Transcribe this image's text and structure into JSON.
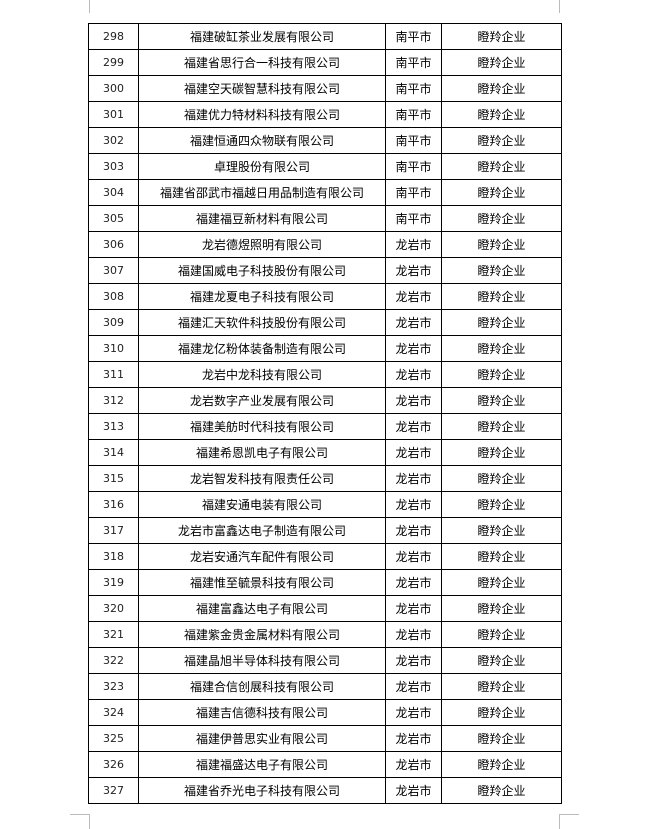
{
  "rows": [
    {
      "no": "298",
      "name": "福建破缸茶业发展有限公司",
      "city": "南平市",
      "type": "瞪羚企业"
    },
    {
      "no": "299",
      "name": "福建省思行合一科技有限公司",
      "city": "南平市",
      "type": "瞪羚企业"
    },
    {
      "no": "300",
      "name": "福建空天碳智慧科技有限公司",
      "city": "南平市",
      "type": "瞪羚企业"
    },
    {
      "no": "301",
      "name": "福建优力特材料科技有限公司",
      "city": "南平市",
      "type": "瞪羚企业"
    },
    {
      "no": "302",
      "name": "福建恒通四众物联有限公司",
      "city": "南平市",
      "type": "瞪羚企业"
    },
    {
      "no": "303",
      "name": "卓理股份有限公司",
      "city": "南平市",
      "type": "瞪羚企业"
    },
    {
      "no": "304",
      "name": "福建省邵武市福越日用品制造有限公司",
      "city": "南平市",
      "type": "瞪羚企业"
    },
    {
      "no": "305",
      "name": "福建福豆新材料有限公司",
      "city": "南平市",
      "type": "瞪羚企业"
    },
    {
      "no": "306",
      "name": "龙岩德煜照明有限公司",
      "city": "龙岩市",
      "type": "瞪羚企业"
    },
    {
      "no": "307",
      "name": "福建国威电子科技股份有限公司",
      "city": "龙岩市",
      "type": "瞪羚企业"
    },
    {
      "no": "308",
      "name": "福建龙夏电子科技有限公司",
      "city": "龙岩市",
      "type": "瞪羚企业"
    },
    {
      "no": "309",
      "name": "福建汇天软件科技股份有限公司",
      "city": "龙岩市",
      "type": "瞪羚企业"
    },
    {
      "no": "310",
      "name": "福建龙亿粉体装备制造有限公司",
      "city": "龙岩市",
      "type": "瞪羚企业"
    },
    {
      "no": "311",
      "name": "龙岩中龙科技有限公司",
      "city": "龙岩市",
      "type": "瞪羚企业"
    },
    {
      "no": "312",
      "name": "龙岩数字产业发展有限公司",
      "city": "龙岩市",
      "type": "瞪羚企业"
    },
    {
      "no": "313",
      "name": "福建美舫时代科技有限公司",
      "city": "龙岩市",
      "type": "瞪羚企业"
    },
    {
      "no": "314",
      "name": "福建希恩凯电子有限公司",
      "city": "龙岩市",
      "type": "瞪羚企业"
    },
    {
      "no": "315",
      "name": "龙岩智发科技有限责任公司",
      "city": "龙岩市",
      "type": "瞪羚企业"
    },
    {
      "no": "316",
      "name": "福建安通电装有限公司",
      "city": "龙岩市",
      "type": "瞪羚企业"
    },
    {
      "no": "317",
      "name": "龙岩市富鑫达电子制造有限公司",
      "city": "龙岩市",
      "type": "瞪羚企业"
    },
    {
      "no": "318",
      "name": "龙岩安通汽车配件有限公司",
      "city": "龙岩市",
      "type": "瞪羚企业"
    },
    {
      "no": "319",
      "name": "福建惟至毓景科技有限公司",
      "city": "龙岩市",
      "type": "瞪羚企业"
    },
    {
      "no": "320",
      "name": "福建富鑫达电子有限公司",
      "city": "龙岩市",
      "type": "瞪羚企业"
    },
    {
      "no": "321",
      "name": "福建紫金贵金属材料有限公司",
      "city": "龙岩市",
      "type": "瞪羚企业"
    },
    {
      "no": "322",
      "name": "福建晶旭半导体科技有限公司",
      "city": "龙岩市",
      "type": "瞪羚企业"
    },
    {
      "no": "323",
      "name": "福建合信创展科技有限公司",
      "city": "龙岩市",
      "type": "瞪羚企业"
    },
    {
      "no": "324",
      "name": "福建吉信德科技有限公司",
      "city": "龙岩市",
      "type": "瞪羚企业"
    },
    {
      "no": "325",
      "name": "福建伊普思实业有限公司",
      "city": "龙岩市",
      "type": "瞪羚企业"
    },
    {
      "no": "326",
      "name": "福建福盛达电子有限公司",
      "city": "龙岩市",
      "type": "瞪羚企业"
    },
    {
      "no": "327",
      "name": "福建省乔光电子科技有限公司",
      "city": "龙岩市",
      "type": "瞪羚企业"
    }
  ]
}
